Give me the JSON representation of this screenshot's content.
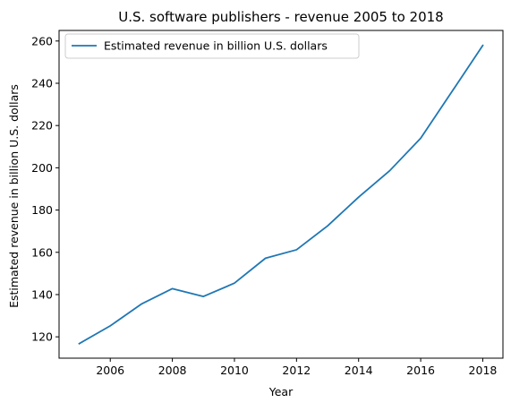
{
  "chart_data": {
    "type": "line",
    "title": "U.S. software publishers - revenue 2005 to 2018",
    "xlabel": "Year",
    "ylabel": "Estimated revenue in billion U.S. dollars",
    "xlim": [
      2004.35,
      2018.65
    ],
    "ylim": [
      109.9,
      265.0
    ],
    "x_ticks": [
      2006,
      2008,
      2010,
      2012,
      2014,
      2016,
      2018
    ],
    "y_ticks": [
      120,
      140,
      160,
      180,
      200,
      220,
      240,
      260
    ],
    "grid": false,
    "legend_position": "upper left",
    "series": [
      {
        "name": "Estimated revenue in billion U.S. dollars",
        "color": "#1f77b4",
        "x": [
          2005,
          2006,
          2007,
          2008,
          2009,
          2010,
          2011,
          2012,
          2013,
          2014,
          2015,
          2016,
          2017,
          2018
        ],
        "y": [
          116.8,
          125.2,
          135.5,
          142.8,
          139.1,
          145.4,
          157.2,
          161.2,
          172.5,
          186.1,
          198.6,
          214.0,
          235.9,
          257.9
        ]
      }
    ]
  }
}
